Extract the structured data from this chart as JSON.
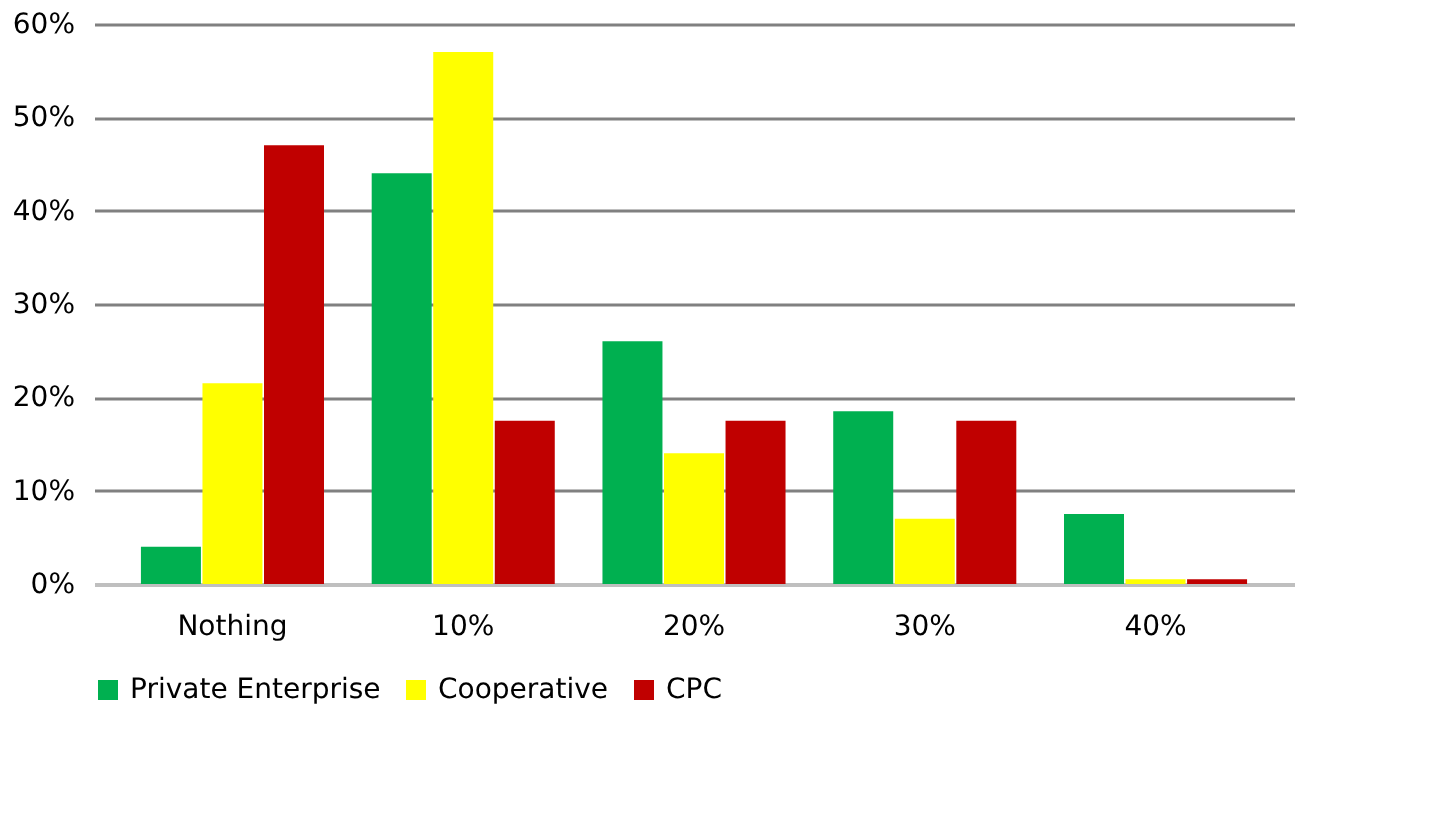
{
  "chart_data": {
    "type": "bar",
    "categories": [
      "Nothing",
      "10%",
      "20%",
      "30%",
      "40%"
    ],
    "series": [
      {
        "name": "Private Enterprise",
        "color": "#00b050",
        "values": [
          4,
          44,
          26,
          18.5,
          7.5
        ]
      },
      {
        "name": "Cooperative",
        "color": "#ffff00",
        "values": [
          21.5,
          57,
          14,
          7,
          0.5
        ]
      },
      {
        "name": "CPC",
        "color": "#c00000",
        "values": [
          47,
          17.5,
          17.5,
          17.5,
          0.5
        ]
      }
    ],
    "ylim": [
      0,
      60
    ],
    "yticks": [
      {
        "value": 0,
        "label": "0%"
      },
      {
        "value": 10,
        "label": "10%"
      },
      {
        "value": 20,
        "label": "20%"
      },
      {
        "value": 30,
        "label": "30%"
      },
      {
        "value": 40,
        "label": "40%"
      },
      {
        "value": 50,
        "label": "50%"
      },
      {
        "value": 60,
        "label": "60%"
      }
    ],
    "grid": "y",
    "legend": "bottom"
  }
}
